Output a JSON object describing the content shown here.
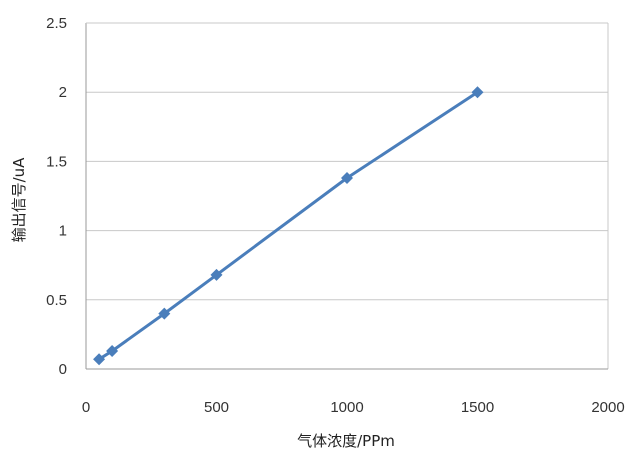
{
  "chart_data": {
    "type": "scatter",
    "xlabel": "气体浓度/PPm",
    "ylabel": "输出信号/uA",
    "xlim": [
      0,
      2000
    ],
    "ylim": [
      0,
      2.5
    ],
    "x_ticks": [
      "0",
      "500",
      "1000",
      "1500",
      "2000"
    ],
    "y_ticks": [
      "0",
      "0.5",
      "1",
      "1.5",
      "2",
      "2.5"
    ],
    "grid": "horizontal",
    "series": [
      {
        "color": "#4A7EBB",
        "marker": "diamond",
        "line": true,
        "points": [
          {
            "x": 50,
            "y": 0.07
          },
          {
            "x": 100,
            "y": 0.13
          },
          {
            "x": 300,
            "y": 0.4
          },
          {
            "x": 500,
            "y": 0.68
          },
          {
            "x": 1000,
            "y": 1.38
          },
          {
            "x": 1500,
            "y": 2.0
          }
        ]
      }
    ]
  },
  "colors": {
    "series": "#4A7EBB",
    "grid": "#C8C8C8",
    "axis": "#9A9A9A"
  }
}
